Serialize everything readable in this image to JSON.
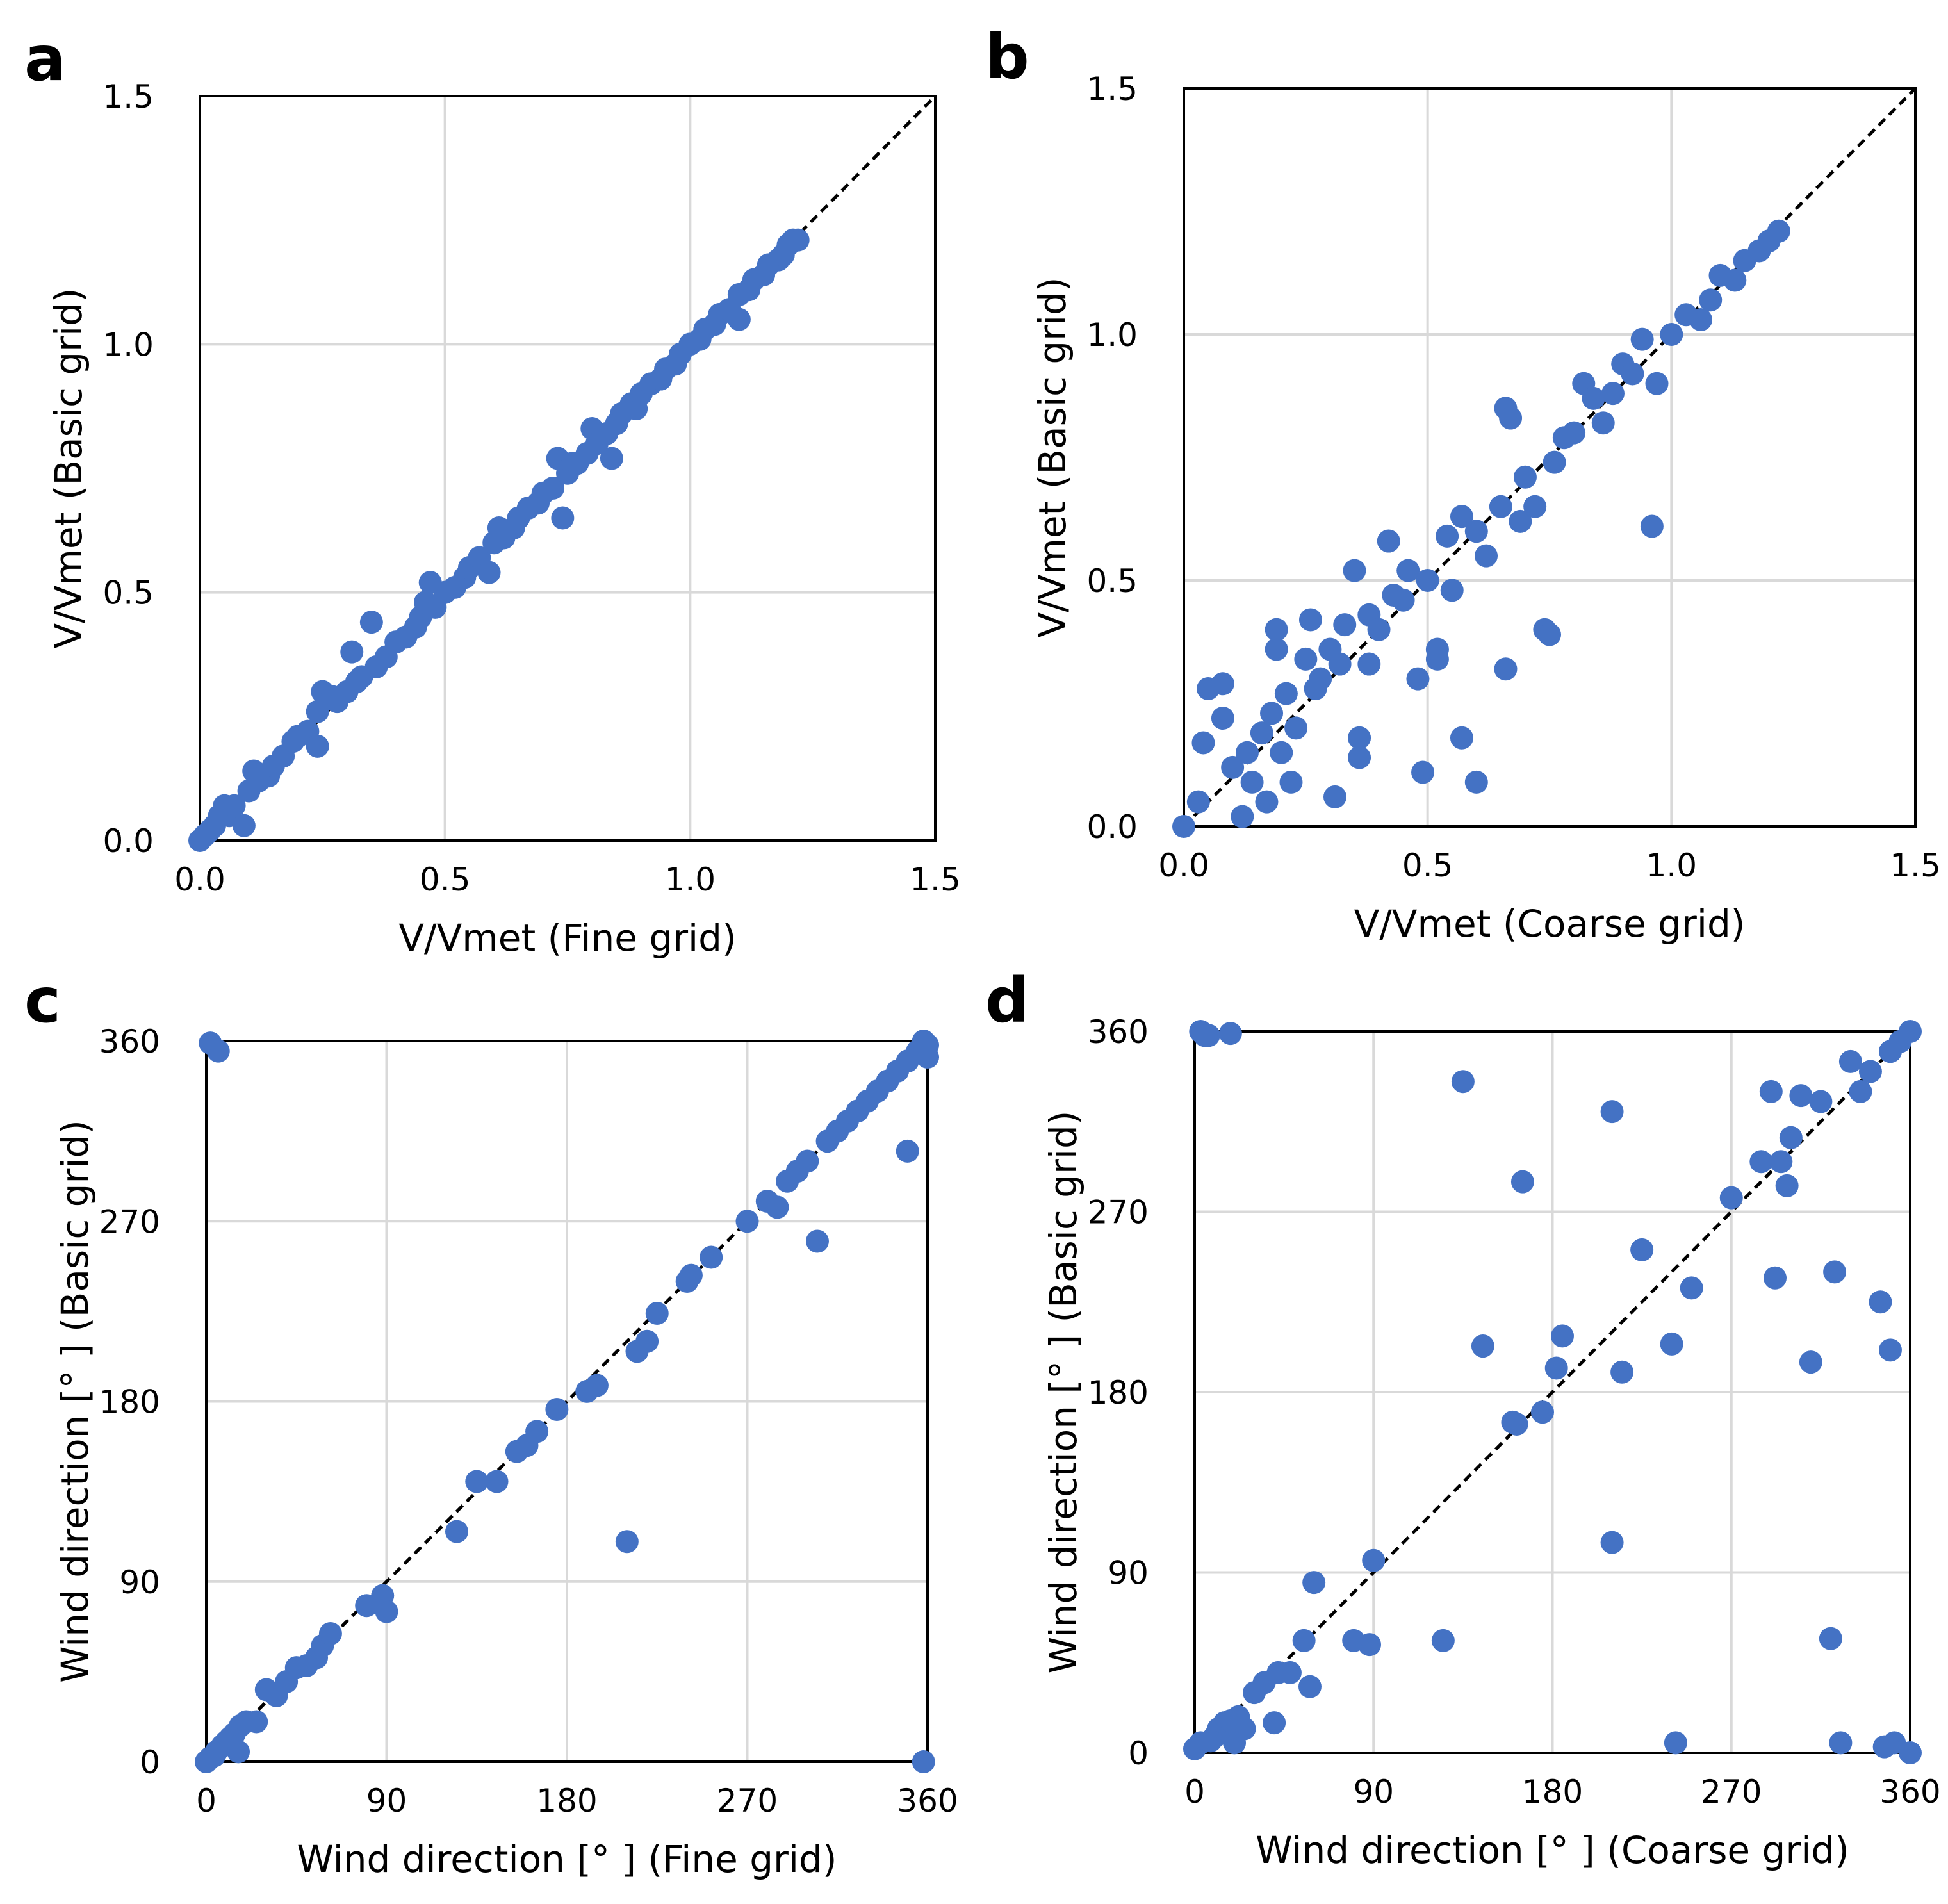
{
  "colors": {
    "marker": "#4472C4",
    "grid": "#D9D9D9",
    "axis": "#000000",
    "diagonal": "#000000"
  },
  "chart_data": [
    {
      "id": "a",
      "type": "scatter",
      "letter": "a",
      "xlabel": "V/Vmet  (Fine grid)",
      "ylabel": "V/Vmet (Basic grid)",
      "xlim": [
        0,
        1.5
      ],
      "ylim": [
        0,
        1.5
      ],
      "xticks": [
        0.0,
        0.5,
        1.0,
        1.5
      ],
      "yticks": [
        0.0,
        0.5,
        1.0,
        1.5
      ],
      "xtick_labels": [
        "0.0",
        "0.5",
        "1.0",
        "1.5"
      ],
      "ytick_labels": [
        "0.0",
        "0.5",
        "1.0",
        "1.5"
      ],
      "grid": true,
      "diagonal": true,
      "points": [
        [
          0.0,
          0.0
        ],
        [
          0.01,
          0.01
        ],
        [
          0.02,
          0.02
        ],
        [
          0.03,
          0.03
        ],
        [
          0.04,
          0.05
        ],
        [
          0.05,
          0.07
        ],
        [
          0.06,
          0.05
        ],
        [
          0.07,
          0.07
        ],
        [
          0.09,
          0.03
        ],
        [
          0.1,
          0.1
        ],
        [
          0.11,
          0.14
        ],
        [
          0.12,
          0.12
        ],
        [
          0.14,
          0.13
        ],
        [
          0.15,
          0.15
        ],
        [
          0.17,
          0.17
        ],
        [
          0.19,
          0.2
        ],
        [
          0.2,
          0.21
        ],
        [
          0.22,
          0.22
        ],
        [
          0.24,
          0.19
        ],
        [
          0.24,
          0.26
        ],
        [
          0.25,
          0.3
        ],
        [
          0.27,
          0.29
        ],
        [
          0.28,
          0.28
        ],
        [
          0.3,
          0.3
        ],
        [
          0.31,
          0.38
        ],
        [
          0.32,
          0.32
        ],
        [
          0.33,
          0.33
        ],
        [
          0.35,
          0.44
        ],
        [
          0.36,
          0.35
        ],
        [
          0.38,
          0.37
        ],
        [
          0.4,
          0.4
        ],
        [
          0.42,
          0.41
        ],
        [
          0.44,
          0.43
        ],
        [
          0.45,
          0.45
        ],
        [
          0.46,
          0.48
        ],
        [
          0.47,
          0.52
        ],
        [
          0.48,
          0.47
        ],
        [
          0.5,
          0.5
        ],
        [
          0.52,
          0.51
        ],
        [
          0.54,
          0.53
        ],
        [
          0.55,
          0.55
        ],
        [
          0.57,
          0.57
        ],
        [
          0.59,
          0.54
        ],
        [
          0.6,
          0.6
        ],
        [
          0.61,
          0.63
        ],
        [
          0.62,
          0.61
        ],
        [
          0.64,
          0.63
        ],
        [
          0.65,
          0.65
        ],
        [
          0.67,
          0.67
        ],
        [
          0.69,
          0.68
        ],
        [
          0.7,
          0.7
        ],
        [
          0.72,
          0.71
        ],
        [
          0.73,
          0.77
        ],
        [
          0.74,
          0.65
        ],
        [
          0.75,
          0.74
        ],
        [
          0.76,
          0.76
        ],
        [
          0.77,
          0.76
        ],
        [
          0.79,
          0.78
        ],
        [
          0.8,
          0.83
        ],
        [
          0.81,
          0.8
        ],
        [
          0.83,
          0.82
        ],
        [
          0.84,
          0.77
        ],
        [
          0.85,
          0.84
        ],
        [
          0.86,
          0.86
        ],
        [
          0.88,
          0.88
        ],
        [
          0.89,
          0.87
        ],
        [
          0.9,
          0.9
        ],
        [
          0.92,
          0.92
        ],
        [
          0.94,
          0.93
        ],
        [
          0.95,
          0.95
        ],
        [
          0.97,
          0.96
        ],
        [
          0.98,
          0.98
        ],
        [
          1.0,
          1.0
        ],
        [
          1.02,
          1.01
        ],
        [
          1.03,
          1.03
        ],
        [
          1.05,
          1.04
        ],
        [
          1.06,
          1.06
        ],
        [
          1.08,
          1.07
        ],
        [
          1.1,
          1.05
        ],
        [
          1.1,
          1.1
        ],
        [
          1.12,
          1.11
        ],
        [
          1.13,
          1.13
        ],
        [
          1.15,
          1.14
        ],
        [
          1.16,
          1.16
        ],
        [
          1.18,
          1.17
        ],
        [
          1.19,
          1.18
        ],
        [
          1.2,
          1.2
        ],
        [
          1.21,
          1.21
        ],
        [
          1.22,
          1.21
        ]
      ]
    },
    {
      "id": "b",
      "type": "scatter",
      "letter": "b",
      "xlabel": "V/Vmet  (Coarse grid)",
      "ylabel": "V/Vmet (Basic grid)",
      "xlim": [
        0,
        1.5
      ],
      "ylim": [
        0,
        1.5
      ],
      "xticks": [
        0.0,
        0.5,
        1.0,
        1.5
      ],
      "yticks": [
        0.0,
        0.5,
        1.0,
        1.5
      ],
      "xtick_labels": [
        "0.0",
        "0.5",
        "1.0",
        "1.5"
      ],
      "ytick_labels": [
        "0.0",
        "0.5",
        "1.0",
        "1.5"
      ],
      "grid": true,
      "diagonal": true,
      "points": [
        [
          0.0,
          0.0
        ],
        [
          0.03,
          0.05
        ],
        [
          0.04,
          0.17
        ],
        [
          0.05,
          0.28
        ],
        [
          0.08,
          0.29
        ],
        [
          0.08,
          0.22
        ],
        [
          0.1,
          0.12
        ],
        [
          0.12,
          0.02
        ],
        [
          0.13,
          0.15
        ],
        [
          0.14,
          0.09
        ],
        [
          0.16,
          0.19
        ],
        [
          0.17,
          0.05
        ],
        [
          0.18,
          0.23
        ],
        [
          0.19,
          0.4
        ],
        [
          0.19,
          0.36
        ],
        [
          0.2,
          0.15
        ],
        [
          0.21,
          0.27
        ],
        [
          0.22,
          0.09
        ],
        [
          0.23,
          0.2
        ],
        [
          0.25,
          0.34
        ],
        [
          0.26,
          0.42
        ],
        [
          0.27,
          0.28
        ],
        [
          0.28,
          0.3
        ],
        [
          0.3,
          0.36
        ],
        [
          0.31,
          0.06
        ],
        [
          0.32,
          0.33
        ],
        [
          0.33,
          0.41
        ],
        [
          0.35,
          0.52
        ],
        [
          0.36,
          0.18
        ],
        [
          0.36,
          0.14
        ],
        [
          0.38,
          0.43
        ],
        [
          0.38,
          0.33
        ],
        [
          0.4,
          0.4
        ],
        [
          0.42,
          0.58
        ],
        [
          0.43,
          0.47
        ],
        [
          0.45,
          0.46
        ],
        [
          0.46,
          0.52
        ],
        [
          0.48,
          0.3
        ],
        [
          0.49,
          0.11
        ],
        [
          0.5,
          0.5
        ],
        [
          0.52,
          0.36
        ],
        [
          0.52,
          0.34
        ],
        [
          0.54,
          0.59
        ],
        [
          0.55,
          0.48
        ],
        [
          0.57,
          0.18
        ],
        [
          0.57,
          0.63
        ],
        [
          0.6,
          0.09
        ],
        [
          0.6,
          0.6
        ],
        [
          0.62,
          0.55
        ],
        [
          0.65,
          0.65
        ],
        [
          0.66,
          0.32
        ],
        [
          0.66,
          0.85
        ],
        [
          0.67,
          0.83
        ],
        [
          0.69,
          0.62
        ],
        [
          0.7,
          0.71
        ],
        [
          0.72,
          0.65
        ],
        [
          0.74,
          0.4
        ],
        [
          0.75,
          0.39
        ],
        [
          0.76,
          0.74
        ],
        [
          0.78,
          0.79
        ],
        [
          0.8,
          0.8
        ],
        [
          0.82,
          0.9
        ],
        [
          0.84,
          0.87
        ],
        [
          0.86,
          0.82
        ],
        [
          0.88,
          0.88
        ],
        [
          0.9,
          0.94
        ],
        [
          0.92,
          0.92
        ],
        [
          0.94,
          0.99
        ],
        [
          0.96,
          0.61
        ],
        [
          0.97,
          0.9
        ],
        [
          1.0,
          1.0
        ],
        [
          1.03,
          1.04
        ],
        [
          1.06,
          1.03
        ],
        [
          1.08,
          1.07
        ],
        [
          1.1,
          1.12
        ],
        [
          1.13,
          1.11
        ],
        [
          1.15,
          1.15
        ],
        [
          1.18,
          1.17
        ],
        [
          1.2,
          1.19
        ],
        [
          1.22,
          1.21
        ]
      ]
    },
    {
      "id": "c",
      "type": "scatter",
      "letter": "c",
      "xlabel": "Wind direction [°   ] (Fine grid)",
      "ylabel": "Wind direction [°   ] (Basic grid)",
      "xlim": [
        0,
        360
      ],
      "ylim": [
        0,
        360
      ],
      "xticks": [
        0,
        90,
        180,
        270,
        360
      ],
      "yticks": [
        0,
        90,
        180,
        270,
        360
      ],
      "xtick_labels": [
        "0",
        "90",
        "180",
        "270",
        "360"
      ],
      "ytick_labels": [
        "0",
        "90",
        "180",
        "270",
        "360"
      ],
      "grid": true,
      "diagonal": true,
      "points": [
        [
          0,
          0
        ],
        [
          2,
          2
        ],
        [
          4,
          3
        ],
        [
          5,
          5
        ],
        [
          8,
          8
        ],
        [
          10,
          10
        ],
        [
          12,
          12
        ],
        [
          14,
          14
        ],
        [
          16,
          5
        ],
        [
          17,
          18
        ],
        [
          20,
          20
        ],
        [
          25,
          20
        ],
        [
          30,
          36
        ],
        [
          35,
          33
        ],
        [
          40,
          40
        ],
        [
          45,
          47
        ],
        [
          50,
          48
        ],
        [
          55,
          52
        ],
        [
          58,
          58
        ],
        [
          62,
          64
        ],
        [
          80,
          78
        ],
        [
          88,
          83
        ],
        [
          90,
          75
        ],
        [
          125,
          115
        ],
        [
          135,
          140
        ],
        [
          145,
          140
        ],
        [
          155,
          155
        ],
        [
          160,
          158
        ],
        [
          165,
          165
        ],
        [
          175,
          176
        ],
        [
          190,
          185
        ],
        [
          195,
          188
        ],
        [
          210,
          110
        ],
        [
          215,
          205
        ],
        [
          220,
          210
        ],
        [
          225,
          224
        ],
        [
          240,
          240
        ],
        [
          242,
          243
        ],
        [
          252,
          252
        ],
        [
          270,
          270
        ],
        [
          280,
          280
        ],
        [
          285,
          277
        ],
        [
          290,
          290
        ],
        [
          295,
          295
        ],
        [
          305,
          260
        ],
        [
          300,
          300
        ],
        [
          310,
          310
        ],
        [
          315,
          315
        ],
        [
          320,
          320
        ],
        [
          325,
          325
        ],
        [
          330,
          330
        ],
        [
          335,
          335
        ],
        [
          340,
          340
        ],
        [
          345,
          345
        ],
        [
          350,
          305
        ],
        [
          350,
          350
        ],
        [
          355,
          355
        ],
        [
          360,
          358
        ],
        [
          360,
          352
        ],
        [
          358,
          360
        ],
        [
          2,
          359
        ],
        [
          6,
          355
        ],
        [
          358,
          0
        ]
      ]
    },
    {
      "id": "d",
      "type": "scatter",
      "letter": "d",
      "xlabel": "Wind direction [°   ] (Coarse grid)",
      "ylabel": "Wind direction [°   ] (Basic grid)",
      "xlim": [
        0,
        360
      ],
      "ylim": [
        0,
        360
      ],
      "xticks": [
        0,
        90,
        180,
        270,
        360
      ],
      "yticks": [
        0,
        90,
        180,
        270,
        360
      ],
      "xtick_labels": [
        "0",
        "90",
        "180",
        "270",
        "360"
      ],
      "ytick_labels": [
        "0",
        "90",
        "180",
        "270",
        "360"
      ],
      "grid": true,
      "diagonal": true,
      "points": [
        [
          0,
          2
        ],
        [
          3,
          5
        ],
        [
          5,
          358
        ],
        [
          8,
          6
        ],
        [
          10,
          8
        ],
        [
          12,
          12
        ],
        [
          15,
          15
        ],
        [
          18,
          16
        ],
        [
          20,
          5
        ],
        [
          22,
          18
        ],
        [
          25,
          12
        ],
        [
          30,
          30
        ],
        [
          35,
          35
        ],
        [
          40,
          15
        ],
        [
          42,
          40
        ],
        [
          48,
          40
        ],
        [
          55,
          56
        ],
        [
          58,
          33
        ],
        [
          60,
          85
        ],
        [
          80,
          56
        ],
        [
          88,
          54
        ],
        [
          90,
          96
        ],
        [
          125,
          56
        ],
        [
          135,
          335
        ],
        [
          145,
          203
        ],
        [
          160,
          165
        ],
        [
          162,
          164
        ],
        [
          165,
          285
        ],
        [
          175,
          170
        ],
        [
          182,
          192
        ],
        [
          185,
          208
        ],
        [
          210,
          320
        ],
        [
          210,
          105
        ],
        [
          215,
          190
        ],
        [
          225,
          251
        ],
        [
          240,
          204
        ],
        [
          242,
          5
        ],
        [
          250,
          232
        ],
        [
          270,
          277
        ],
        [
          285,
          295
        ],
        [
          290,
          330
        ],
        [
          292,
          237
        ],
        [
          295,
          295
        ],
        [
          298,
          283
        ],
        [
          300,
          307
        ],
        [
          305,
          328
        ],
        [
          310,
          195
        ],
        [
          315,
          325
        ],
        [
          320,
          57
        ],
        [
          322,
          240
        ],
        [
          325,
          5
        ],
        [
          330,
          345
        ],
        [
          335,
          330
        ],
        [
          340,
          340
        ],
        [
          345,
          225
        ],
        [
          347,
          3
        ],
        [
          350,
          350
        ],
        [
          350,
          201
        ],
        [
          352,
          5
        ],
        [
          355,
          355
        ],
        [
          360,
          0
        ],
        [
          360,
          360
        ],
        [
          3,
          360
        ],
        [
          7,
          358
        ],
        [
          18,
          359
        ]
      ]
    }
  ]
}
